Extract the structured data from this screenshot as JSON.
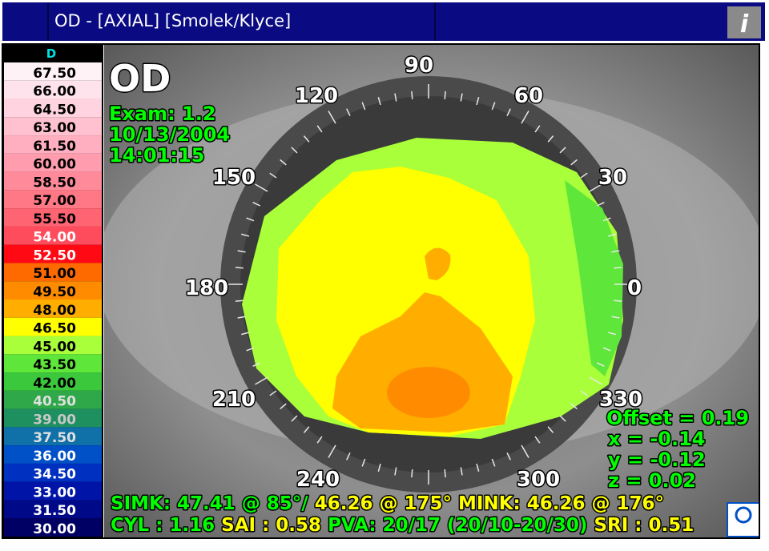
{
  "header": {
    "title": "OD - [AXIAL] [Smolek/Klyce]",
    "info_button": "i"
  },
  "scale": {
    "unit": "D",
    "steps": [
      {
        "label": "67.50",
        "color": "#fff2f6",
        "text_color": "#000000"
      },
      {
        "label": "66.00",
        "color": "#ffe3ec",
        "text_color": "#000000"
      },
      {
        "label": "64.50",
        "color": "#ffd3df",
        "text_color": "#000000"
      },
      {
        "label": "63.00",
        "color": "#ffc1d0",
        "text_color": "#000000"
      },
      {
        "label": "61.50",
        "color": "#ffafbf",
        "text_color": "#000000"
      },
      {
        "label": "60.00",
        "color": "#ff9dae",
        "text_color": "#000000"
      },
      {
        "label": "58.50",
        "color": "#ff8a9a",
        "text_color": "#000000"
      },
      {
        "label": "57.00",
        "color": "#ff7886",
        "text_color": "#000000"
      },
      {
        "label": "55.50",
        "color": "#ff6472",
        "text_color": "#000000"
      },
      {
        "label": "54.00",
        "color": "#ff4c5c",
        "text_color": "#ffffff"
      },
      {
        "label": "52.50",
        "color": "#ff0a14",
        "text_color": "#ffffff"
      },
      {
        "label": "51.00",
        "color": "#ff6a00",
        "text_color": "#000000"
      },
      {
        "label": "49.50",
        "color": "#ff8c00",
        "text_color": "#000000"
      },
      {
        "label": "48.00",
        "color": "#ffae00",
        "text_color": "#000000"
      },
      {
        "label": "46.50",
        "color": "#ffff00",
        "text_color": "#000000"
      },
      {
        "label": "45.00",
        "color": "#a8ff3a",
        "text_color": "#000000"
      },
      {
        "label": "43.50",
        "color": "#5ee63a",
        "text_color": "#000000"
      },
      {
        "label": "42.00",
        "color": "#3cc83c",
        "text_color": "#000000"
      },
      {
        "label": "40.50",
        "color": "#2ea848",
        "text_color": "#e0e0e0"
      },
      {
        "label": "39.00",
        "color": "#1e9060",
        "text_color": "#c8c8c8"
      },
      {
        "label": "37.50",
        "color": "#1070a8",
        "text_color": "#e0e0e0"
      },
      {
        "label": "36.00",
        "color": "#0050c8",
        "text_color": "#ffffff"
      },
      {
        "label": "34.50",
        "color": "#0030c0",
        "text_color": "#ffffff"
      },
      {
        "label": "33.00",
        "color": "#0014a8",
        "text_color": "#ffffff"
      },
      {
        "label": "31.50",
        "color": "#000a88",
        "text_color": "#ffffff"
      },
      {
        "label": "30.00",
        "color": "#000064",
        "text_color": "#ffffff"
      }
    ]
  },
  "overlay": {
    "eye": "OD",
    "exam": [
      "Exam: 1.2",
      "10/13/2004",
      "14:01:15"
    ],
    "angles": [
      "90",
      "60",
      "120",
      "150",
      "30",
      "180",
      "0",
      "210",
      "330",
      "240",
      "300"
    ],
    "offset": [
      "Offset = 0.19",
      "x = -0.14",
      "y = -0.12",
      "z = 0.02"
    ],
    "stats": [
      [
        {
          "text": "SIMK: 47.41 @ 85°/",
          "color": "#00ff00"
        },
        {
          "text": "46.26 @ 175°",
          "color": "#ffff00"
        },
        {
          "text": "MINK: 46.26 @ 176°",
          "color": "#ffff00"
        }
      ],
      [
        {
          "text": "CYL : 1.16",
          "color": "#00ff00"
        },
        {
          "text": "SAI : 0.58",
          "color": "#ffff00"
        },
        {
          "text": "PVA: 20/17 (20/10-20/30)",
          "color": "#00ff00"
        },
        {
          "text": "SRI : 0.51",
          "color": "#ffff00"
        }
      ]
    ]
  }
}
